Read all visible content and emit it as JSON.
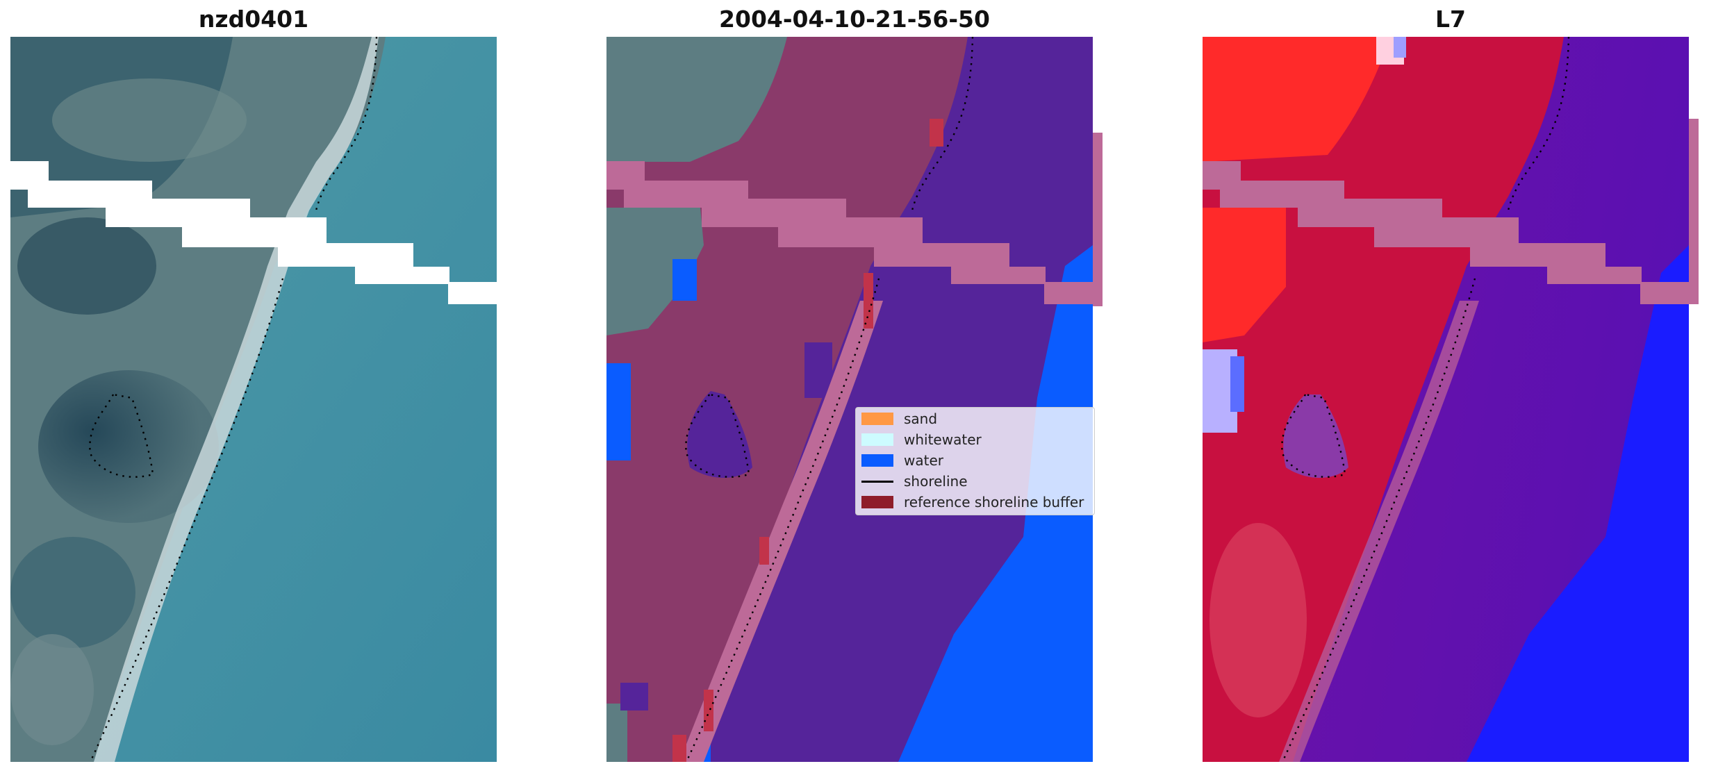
{
  "panels": [
    {
      "title": "nzd0401"
    },
    {
      "title": "2004-04-10-21-56-50"
    },
    {
      "title": "L7"
    }
  ],
  "legend": {
    "items": [
      {
        "label": "sand",
        "color": "#ff9844",
        "kind": "patch"
      },
      {
        "label": "whitewater",
        "color": "#cdfbff",
        "kind": "patch"
      },
      {
        "label": "water",
        "color": "#0a5cff",
        "kind": "patch"
      },
      {
        "label": "shoreline",
        "color": "#000000",
        "kind": "line"
      },
      {
        "label": "reference shoreline buffer",
        "color": "#8f1d2a",
        "kind": "patch"
      }
    ]
  },
  "colors": {
    "land_rgb": "#55787f",
    "sea_rgb": "#3f8ea0",
    "land_class": "#8a3a6a",
    "water_class": "#55249a",
    "water_blue": "#0a5cff",
    "buffer_pink": "#bd6a98",
    "index_red": "#e8243a",
    "index_purple": "#6a10a8",
    "index_blue": "#1a1cff"
  }
}
